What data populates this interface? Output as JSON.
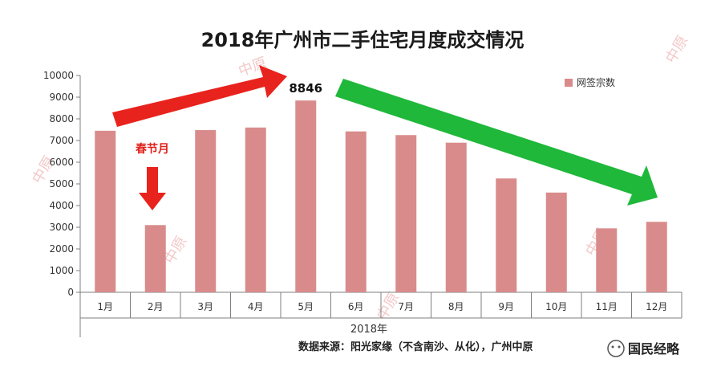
{
  "chart_data": {
    "type": "bar",
    "title": "2018年广州市二手住宅月度成交情况",
    "categories": [
      "1月",
      "2月",
      "3月",
      "4月",
      "5月",
      "6月",
      "7月",
      "8月",
      "9月",
      "10月",
      "11月",
      "12月"
    ],
    "series": [
      {
        "name": "网签宗数",
        "values": [
          7450,
          3100,
          7480,
          7600,
          8846,
          7420,
          7250,
          6900,
          5250,
          4600,
          2950,
          3250
        ],
        "color": "#d98b8b"
      }
    ],
    "ylim": [
      0,
      10000
    ],
    "yticks": [
      0,
      1000,
      2000,
      3000,
      4000,
      5000,
      6000,
      7000,
      8000,
      9000,
      10000
    ],
    "xlabel": "2018年",
    "ylabel": "",
    "legend_position": "top-right",
    "peak_label": "8846",
    "annotations": {
      "spring_festival": "春节月"
    },
    "colors": {
      "up_arrow": "#e8231d",
      "down_arrow": "#1fb83a",
      "axis": "#7f7f7f"
    }
  },
  "source_text": "数据来源：阳光家缘（不含南沙、从化），广州中原",
  "brand": {
    "name": "国民经略"
  },
  "watermark": "中原"
}
